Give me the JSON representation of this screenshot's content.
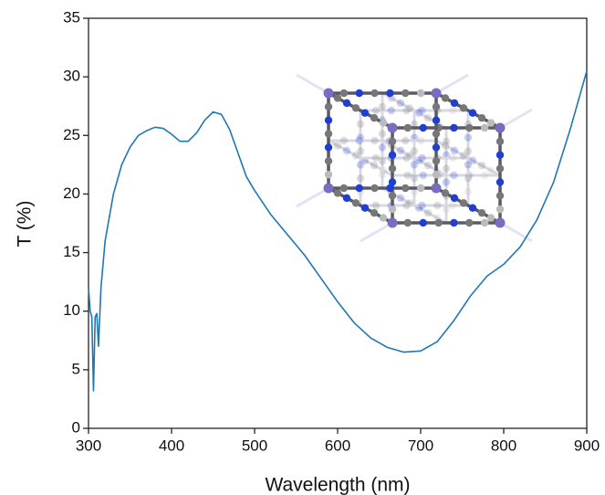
{
  "chart_data": {
    "type": "line",
    "x_label": "Wavelength (nm)",
    "y_label": "T (%)",
    "xlim": [
      300,
      900
    ],
    "xticks": [
      300,
      400,
      500,
      600,
      700,
      800,
      900
    ],
    "ylim": [
      0,
      35
    ],
    "yticks": [
      0,
      5,
      10,
      15,
      20,
      25,
      30,
      35
    ],
    "series": [
      {
        "color": "#1f77b4",
        "x": [
          300,
          302,
          304,
          306,
          308,
          310,
          312,
          315,
          320,
          330,
          340,
          350,
          360,
          370,
          380,
          390,
          400,
          410,
          420,
          430,
          440,
          450,
          460,
          470,
          480,
          490,
          500,
          520,
          540,
          560,
          580,
          600,
          620,
          640,
          660,
          680,
          700,
          720,
          740,
          760,
          780,
          800,
          820,
          840,
          860,
          880,
          900
        ],
        "values": [
          12,
          10,
          9.5,
          3.2,
          9.5,
          9.8,
          7,
          12,
          16,
          20,
          22.5,
          24,
          25,
          25.4,
          25.7,
          25.6,
          25.1,
          24.5,
          24.5,
          25.2,
          26.3,
          27,
          26.8,
          25.5,
          23.5,
          21.5,
          20.3,
          18.2,
          16.5,
          14.8,
          12.8,
          10.8,
          9,
          7.7,
          6.9,
          6.5,
          6.6,
          7.4,
          9.2,
          11.3,
          13,
          14,
          15.5,
          17.8,
          21,
          25.5,
          30.5
        ]
      }
    ]
  }
}
